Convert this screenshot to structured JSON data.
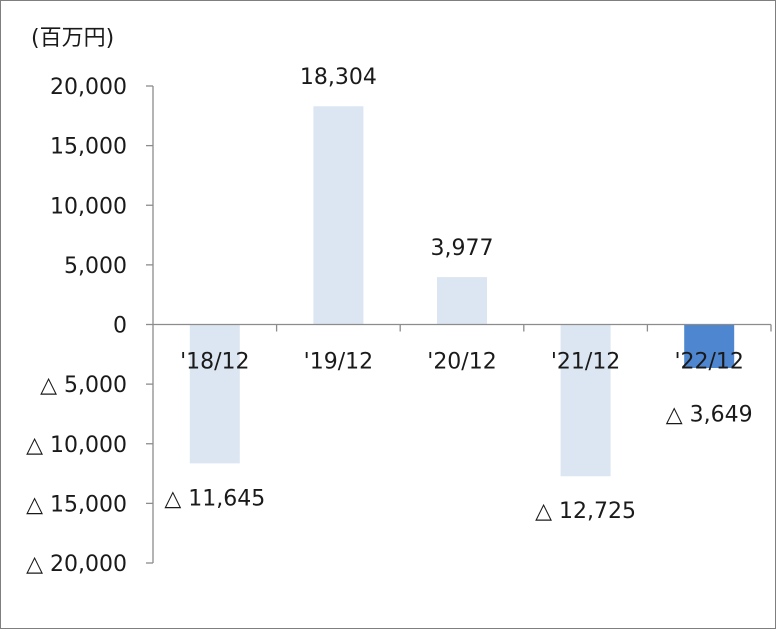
{
  "chart_data": {
    "type": "bar",
    "unit_label": "(百万円)",
    "categories": [
      "'18/12",
      "'19/12",
      "'20/12",
      "'21/12",
      "'22/12"
    ],
    "values": [
      -11645,
      18304,
      3977,
      -12725,
      -3649
    ],
    "data_labels": [
      "△ 11,645",
      "18,304",
      "3,977",
      "△ 12,725",
      "△ 3,649"
    ],
    "y_ticks": [
      {
        "value": 20000,
        "label": "20,000"
      },
      {
        "value": 15000,
        "label": "15,000"
      },
      {
        "value": 10000,
        "label": "10,000"
      },
      {
        "value": 5000,
        "label": "5,000"
      },
      {
        "value": 0,
        "label": "0"
      },
      {
        "value": -5000,
        "label": "△ 5,000"
      },
      {
        "value": -10000,
        "label": "△ 10,000"
      },
      {
        "value": -15000,
        "label": "△ 15,000"
      },
      {
        "value": -20000,
        "label": "△ 20,000"
      }
    ],
    "ylim": [
      -20000,
      20000
    ],
    "grid": false,
    "colors": {
      "default_bar": "#dce6f2",
      "highlight_bar": "#4f86d0",
      "axis": "#8c8c8c",
      "frame": "#7f7f7f"
    },
    "highlight_index": 4
  }
}
